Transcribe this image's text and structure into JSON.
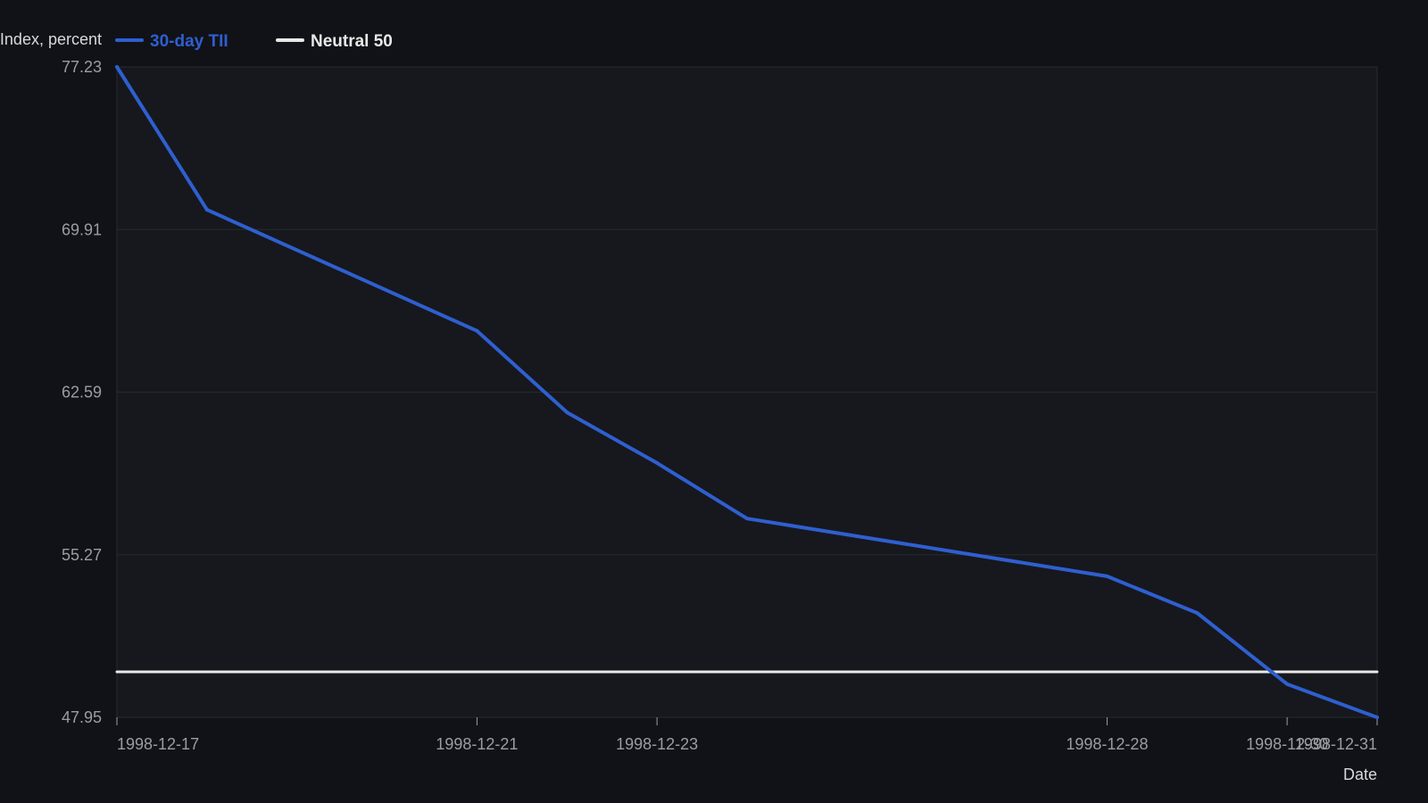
{
  "chart_data": {
    "type": "line",
    "xlabel": "Date",
    "ylabel": "Index, percent",
    "y_ticks": [
      "47.95",
      "55.27",
      "62.59",
      "69.91",
      "77.23"
    ],
    "x_ticks": [
      "1998-12-17",
      "1998-12-21",
      "1998-12-23",
      "1998-12-28",
      "1998-12-30",
      "1998-12-31"
    ],
    "ylim": [
      47.95,
      77.23
    ],
    "xlim": [
      "1998-12-17",
      "1998-12-31"
    ],
    "grid": true,
    "legend_position": "top-left",
    "series": [
      {
        "name": "30-day TII",
        "color": "#2f5fd0",
        "x": [
          "1998-12-17",
          "1998-12-18",
          "1998-12-21",
          "1998-12-22",
          "1998-12-23",
          "1998-12-24",
          "1998-12-28",
          "1998-12-29",
          "1998-12-30",
          "1998-12-31"
        ],
        "y": [
          77.23,
          70.8,
          65.35,
          61.68,
          59.4,
          56.9,
          54.3,
          52.65,
          49.45,
          47.95
        ]
      },
      {
        "name": "Neutral 50",
        "color": "#e8e8e8",
        "x": [
          "1998-12-17",
          "1998-12-31"
        ],
        "y": [
          50,
          50
        ]
      }
    ]
  }
}
